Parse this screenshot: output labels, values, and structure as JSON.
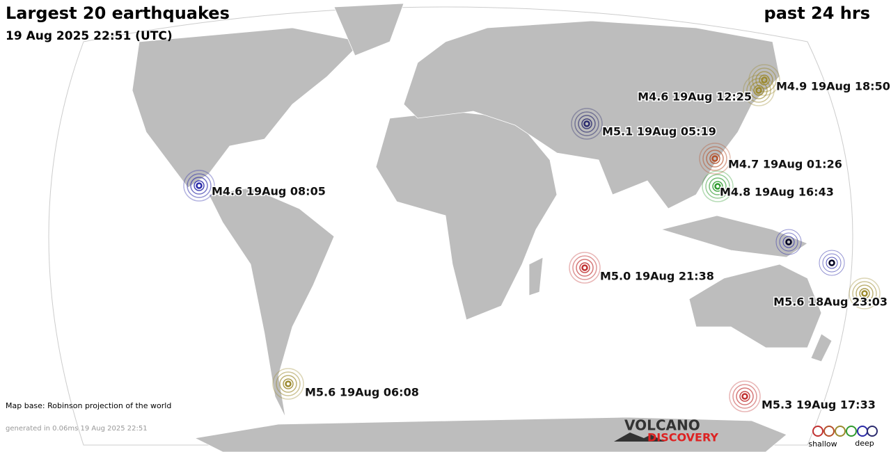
{
  "header": {
    "title": "Largest 20 earthquakes",
    "subtitle": "19 Aug 2025 22:51 (UTC)",
    "period": "past 24 hrs"
  },
  "quakes": [
    {
      "label": "M4.9 19Aug 18:50",
      "color": "#9c8a2e"
    },
    {
      "label": "M4.6 19Aug 12:25",
      "color": "#9c8a2e"
    },
    {
      "label": "M5.1 19Aug 05:19",
      "color": "#2b2b6e"
    },
    {
      "label": "M4.7 19Aug 01:26",
      "color": "#b5502a"
    },
    {
      "label": "M4.8 19Aug 16:43",
      "color": "#2e9a2e"
    },
    {
      "label": "M4.6 19Aug 08:05",
      "color": "#2a2aa8"
    },
    {
      "label": "M5.0 19Aug 21:38",
      "color": "#c03030"
    },
    {
      "label": "M5.6 18Aug 23:03",
      "color": "#9c8a2e"
    },
    {
      "label": "M5.6 19Aug 06:08",
      "color": "#9c8a2e"
    },
    {
      "label": "M5.3 19Aug 17:33",
      "color": "#c03030"
    }
  ],
  "footer": {
    "map_base": "Map base: Robinson projection of the world",
    "generated": "generated in 0.06ms 19 Aug 2025 22:51"
  },
  "logo": {
    "line1": "VOLCANO",
    "line2": "DISCOVERY"
  },
  "legend": {
    "shallow": "shallow",
    "deep": "deep"
  }
}
